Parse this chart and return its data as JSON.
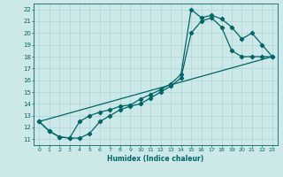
{
  "xlabel": "Humidex (Indice chaleur)",
  "ylabel": "",
  "bg_color": "#cde8e8",
  "line_color": "#006666",
  "grid_color": "#b0d8d8",
  "xlim": [
    -0.5,
    23.5
  ],
  "ylim": [
    10.5,
    22.5
  ],
  "xticks": [
    0,
    1,
    2,
    3,
    4,
    5,
    6,
    7,
    8,
    9,
    10,
    11,
    12,
    13,
    14,
    15,
    16,
    17,
    18,
    19,
    20,
    21,
    22,
    23
  ],
  "yticks": [
    11,
    12,
    13,
    14,
    15,
    16,
    17,
    18,
    19,
    20,
    21,
    22
  ],
  "line1_x": [
    0,
    1,
    2,
    3,
    4,
    5,
    6,
    7,
    8,
    9,
    10,
    11,
    12,
    13,
    14,
    15,
    16,
    17,
    18,
    19,
    20,
    21,
    22,
    23
  ],
  "line1_y": [
    12.5,
    11.7,
    11.2,
    11.1,
    12.5,
    13.0,
    13.3,
    13.5,
    13.8,
    13.9,
    14.4,
    14.8,
    15.2,
    15.7,
    16.5,
    22.0,
    21.3,
    21.5,
    21.2,
    20.5,
    19.5,
    20.0,
    19.0,
    18.0
  ],
  "line2_x": [
    0,
    1,
    2,
    3,
    4,
    5,
    6,
    7,
    8,
    9,
    10,
    11,
    12,
    13,
    14,
    15,
    16,
    17,
    18,
    19,
    20,
    21,
    22,
    23
  ],
  "line2_y": [
    12.5,
    11.7,
    11.2,
    11.1,
    11.1,
    11.5,
    12.5,
    13.0,
    13.5,
    13.8,
    14.0,
    14.5,
    15.0,
    15.5,
    16.2,
    20.0,
    21.0,
    21.3,
    20.5,
    18.5,
    18.0,
    18.0,
    18.0,
    18.0
  ],
  "line3_x": [
    0,
    23
  ],
  "line3_y": [
    12.5,
    18.0
  ],
  "marker": "D",
  "markersize": 2.2,
  "linewidth": 0.9
}
